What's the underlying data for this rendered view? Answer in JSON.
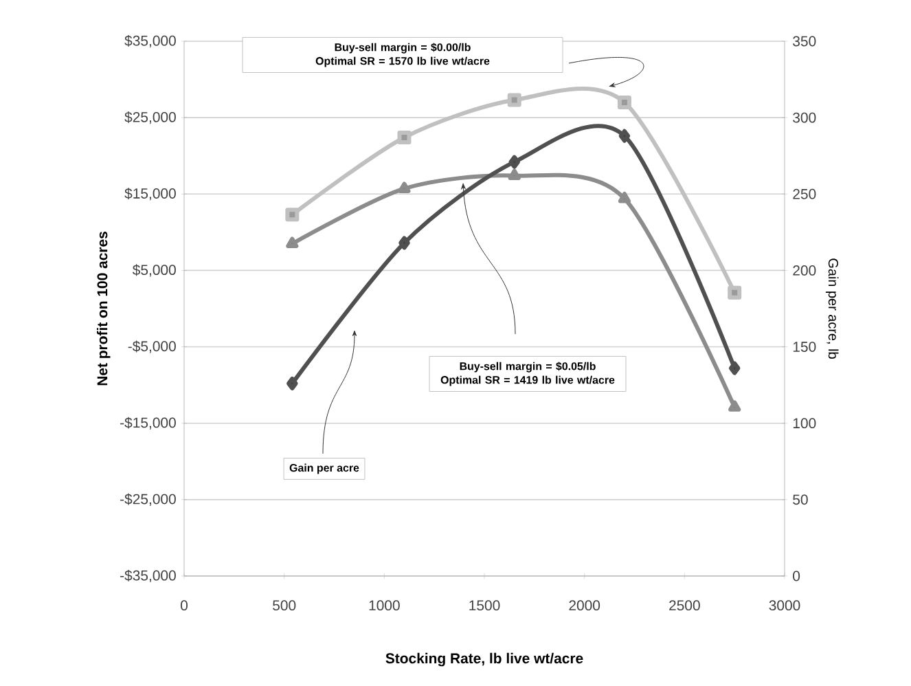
{
  "chart_data": {
    "type": "line",
    "xlabel": "Stocking Rate, lb live wt/acre",
    "ylabel": "Net profit on 100 acres",
    "y2label": "Gain per acre, lb",
    "xlim": [
      0,
      3000
    ],
    "xticks": [
      0,
      500,
      1000,
      1500,
      2000,
      2500,
      3000
    ],
    "ylim": [
      -35000,
      35000
    ],
    "yticks": [
      {
        "value": -35000,
        "label": "-$35,000"
      },
      {
        "value": -25000,
        "label": "-$25,000"
      },
      {
        "value": -15000,
        "label": "-$15,000"
      },
      {
        "value": -5000,
        "label": "-$5,000"
      },
      {
        "value": 5000,
        "label": "$5,000"
      },
      {
        "value": 15000,
        "label": "$15,000"
      },
      {
        "value": 25000,
        "label": "$25,000"
      },
      {
        "value": 35000,
        "label": "$35,000"
      }
    ],
    "y2lim": [
      0,
      350
    ],
    "y2ticks": [
      0,
      50,
      100,
      150,
      200,
      250,
      300,
      350
    ],
    "grid": "y",
    "x": [
      540,
      1100,
      1650,
      2200,
      2750
    ],
    "series": [
      {
        "color": "#c0c0c0",
        "marker": "square",
        "values": [
          12300,
          22400,
          27300,
          27000,
          2100
        ]
      },
      {
        "color": "#8c8c8c",
        "marker": "triangle",
        "values": [
          8500,
          15700,
          17400,
          14400,
          -12900
        ]
      },
      {
        "color": "#505050",
        "marker": "diamond",
        "axis": "y2",
        "values": [
          126,
          218,
          271,
          288,
          136
        ]
      }
    ],
    "annotations": [
      "Buy-sell margin = $0.00/lb",
      "Optimal SR = 1570 lb live wt/acre",
      "Buy-sell margin = $0.05/lb",
      "Optimal SR = 1419 lb live wt/acre",
      "Gain per acre"
    ]
  }
}
